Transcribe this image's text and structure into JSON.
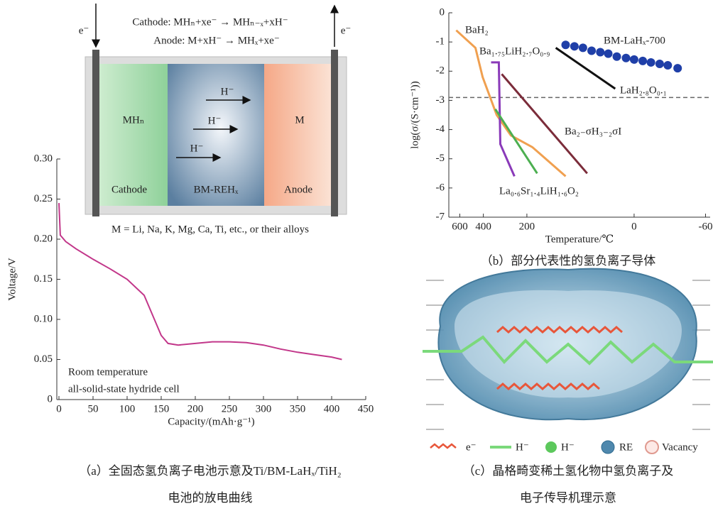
{
  "diagram": {
    "electron_left": "e⁻",
    "electron_right": "e⁻",
    "cathode_reaction": "Cathode: MHₙ+xe⁻ → MHₙ₋ₓ+xH⁻",
    "anode_reaction": "Anode: M+xH⁻ → MHₓ+xe⁻",
    "cathode_species": "MHₙ",
    "anode_species": "M",
    "ions": [
      "H⁻",
      "H⁻",
      "H⁻"
    ],
    "cathode_label": "Cathode",
    "electrolyte_label": "BM-REHₓ",
    "anode_label": "Anode",
    "note": "M = Li, Na, K, Mg, Ca, Ti, etc., or their alloys"
  },
  "chart_data": [
    {
      "type": "line",
      "x_label": "Capacity/(mAh·g⁻¹)",
      "y_label": "Voltage/V",
      "annotations": [
        "Room temperature",
        "all-solid-state hydride cell"
      ],
      "xlim": [
        0,
        450
      ],
      "xticks": [
        0,
        50,
        100,
        150,
        200,
        250,
        300,
        350,
        400,
        450
      ],
      "ylim": [
        0,
        0.3
      ],
      "yticks": [
        0,
        0.05,
        {
          "value": 0.1,
          "label": "0.10"
        },
        0.15,
        {
          "value": 0.2,
          "label": "0.20"
        },
        0.25,
        {
          "value": 0.3,
          "label": "0.30"
        }
      ],
      "x": [
        0,
        2,
        10,
        25,
        50,
        75,
        100,
        125,
        140,
        150,
        160,
        175,
        200,
        225,
        250,
        275,
        300,
        325,
        350,
        375,
        400,
        415
      ],
      "series": [
        {
          "color": "#c2378a",
          "values": [
            0.245,
            0.205,
            0.197,
            0.188,
            0.175,
            0.163,
            0.15,
            0.13,
            0.1,
            0.08,
            0.07,
            0.068,
            0.07,
            0.072,
            0.072,
            0.071,
            0.068,
            0.063,
            0.059,
            0.056,
            0.053,
            0.05
          ]
        }
      ]
    },
    {
      "type": "line",
      "x_scale": "reciprocal",
      "x_label": "Temperature/℃",
      "y_label": "log(σ/(S·cm⁻¹))",
      "xlim": [
        740,
        -63
      ],
      "xticks": [
        600,
        400,
        200,
        0,
        -60
      ],
      "ylim": [
        -7,
        0
      ],
      "yticks": [
        0,
        -1,
        -2,
        -3,
        -4,
        -5,
        -6,
        -7
      ],
      "hline": -2.9,
      "series": [
        {
          "name": "BaH₂",
          "color": "#f0a050",
          "x": [
            641,
            456,
            405,
            323,
            258,
            183,
            101
          ],
          "values": [
            -0.6,
            -1.2,
            -2.2,
            -3.5,
            -4.2,
            -4.6,
            -5.6
          ]
        },
        {
          "name": "Ba₁.₇₅LiH₂.₇O₀.₉",
          "color": "#8a3ab9",
          "x": [
            353,
            312,
            305,
            244
          ],
          "values": [
            -1.7,
            -1.7,
            -4.5,
            -5.6
          ]
        },
        {
          "name": "La₀.₆Sr₁.₄LiH₁.₆O₂",
          "color": "#4caf50",
          "x": [
            330,
            169
          ],
          "values": [
            -3.3,
            -5.5
          ]
        },
        {
          "name": "Ba₂₋σH₃₋₂σI",
          "color": "#7b2c3a",
          "x": [
            298,
            62
          ],
          "values": [
            -2.1,
            -5.5
          ]
        },
        {
          "name": "LaH₂.₈O₀.₁",
          "color": "#111111",
          "x": [
            122,
            22
          ],
          "values": [
            -1.2,
            -2.6
          ]
        },
        {
          "name": "BM-LaHₓ-700",
          "color": "#1f3fa8",
          "kind": "scatter",
          "x": [
            101,
            84,
            69,
            55,
            42,
            31,
            20,
            9,
            0,
            -9,
            -17,
            -25,
            -32,
            -40
          ],
          "values": [
            -1.1,
            -1.15,
            -1.2,
            -1.3,
            -1.35,
            -1.4,
            -1.5,
            -1.55,
            -1.6,
            -1.65,
            -1.7,
            -1.75,
            -1.8,
            -1.9
          ]
        }
      ]
    }
  ],
  "illustration": {
    "legend": [
      "e⁻",
      "H⁻",
      "H⁻",
      "RE",
      "Vacancy"
    ]
  },
  "captions": {
    "a": [
      "（a）全固态氢负离子电池示意及Ti/BM-LaHₓ/TiH₂",
      "电池的放电曲线"
    ],
    "b": "（b）部分代表性的氢负离子导体",
    "c": [
      "（c）晶格畸变稀土氢化物中氢负离子及",
      "电子传导机理示意"
    ]
  }
}
